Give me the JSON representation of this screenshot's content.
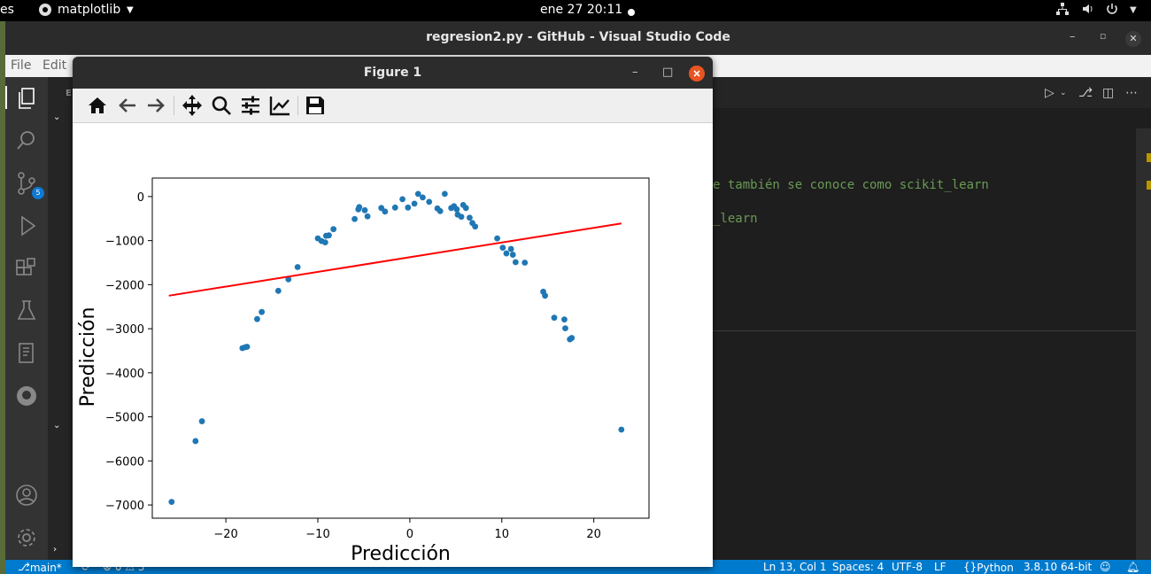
{
  "topbar": {
    "left_fragment": "es",
    "app_name": "matplotlib",
    "clock": "ene 27  20:11"
  },
  "vscode": {
    "title": "regresion2.py - GitHub - Visual Studio Code",
    "menu": [
      "File",
      "Edit"
    ],
    "scm_badge": "5",
    "code_lines": [
      "e también se conoce como scikit_learn",
      "_learn"
    ]
  },
  "status": {
    "branch": "main*",
    "problems": "⊗ 0 ⚠ 3",
    "position": "Ln 13, Col 1",
    "spaces": "Spaces: 4",
    "encoding": "UTF-8",
    "eol": "LF",
    "language": "Python",
    "interpreter": "3.8.10 64-bit"
  },
  "figure": {
    "title": "Figure 1",
    "toolbar": [
      "home-icon",
      "back-icon",
      "forward-icon",
      "pan-icon",
      "zoom-icon",
      "configure-subplots-icon",
      "edit-axis-icon",
      "save-icon"
    ]
  },
  "chart_data": {
    "type": "scatter",
    "xlabel": "Predicción",
    "ylabel": "Predicción",
    "xlim": [
      -28,
      26
    ],
    "ylim": [
      -7300,
      420
    ],
    "xticks": [
      -20,
      -10,
      0,
      10,
      20
    ],
    "xtick_labels": [
      "−20",
      "−10",
      "0",
      "10",
      "20"
    ],
    "yticks": [
      0,
      -1000,
      -2000,
      -3000,
      -4000,
      -5000,
      -6000,
      -7000
    ],
    "ytick_labels": [
      "0",
      "−1000",
      "−2000",
      "−3000",
      "−4000",
      "−5000",
      "−6000",
      "−7000"
    ],
    "points_color": "#1f77b4",
    "line_color": "#ff0000",
    "points": [
      [
        -25.9,
        -6930
      ],
      [
        -23.3,
        -5550
      ],
      [
        -22.6,
        -5100
      ],
      [
        -18.2,
        -3440
      ],
      [
        -17.9,
        -3420
      ],
      [
        -17.7,
        -3410
      ],
      [
        -16.6,
        -2780
      ],
      [
        -16.1,
        -2620
      ],
      [
        -14.3,
        -2140
      ],
      [
        -13.2,
        -1880
      ],
      [
        -12.2,
        -1600
      ],
      [
        -10.0,
        -950
      ],
      [
        -9.6,
        -1010
      ],
      [
        -9.2,
        -1040
      ],
      [
        -9.1,
        -890
      ],
      [
        -8.8,
        -880
      ],
      [
        -8.3,
        -740
      ],
      [
        -6.0,
        -510
      ],
      [
        -5.6,
        -290
      ],
      [
        -5.5,
        -240
      ],
      [
        -4.9,
        -310
      ],
      [
        -4.6,
        -450
      ],
      [
        -3.1,
        -260
      ],
      [
        -2.7,
        -340
      ],
      [
        -1.6,
        -250
      ],
      [
        -0.8,
        -60
      ],
      [
        -0.2,
        -250
      ],
      [
        0.5,
        -160
      ],
      [
        0.9,
        60
      ],
      [
        1.4,
        -20
      ],
      [
        2.1,
        -120
      ],
      [
        3.0,
        -270
      ],
      [
        3.3,
        -330
      ],
      [
        3.8,
        60
      ],
      [
        4.5,
        -260
      ],
      [
        4.8,
        -220
      ],
      [
        5.1,
        -290
      ],
      [
        5.2,
        -410
      ],
      [
        5.6,
        -460
      ],
      [
        5.8,
        -190
      ],
      [
        6.1,
        -260
      ],
      [
        6.5,
        -480
      ],
      [
        6.8,
        -600
      ],
      [
        7.1,
        -680
      ],
      [
        9.5,
        -950
      ],
      [
        10.1,
        -1160
      ],
      [
        10.5,
        -1290
      ],
      [
        11.0,
        -1190
      ],
      [
        11.2,
        -1320
      ],
      [
        11.5,
        -1490
      ],
      [
        12.5,
        -1500
      ],
      [
        14.5,
        -2160
      ],
      [
        14.7,
        -2250
      ],
      [
        15.7,
        -2750
      ],
      [
        16.8,
        -2790
      ],
      [
        16.9,
        -2990
      ],
      [
        17.4,
        -3240
      ],
      [
        17.6,
        -3210
      ],
      [
        23.0,
        -5290
      ]
    ],
    "regression_line": {
      "x": [
        -26.2,
        23.0
      ],
      "y": [
        -2250,
        -610
      ]
    }
  }
}
